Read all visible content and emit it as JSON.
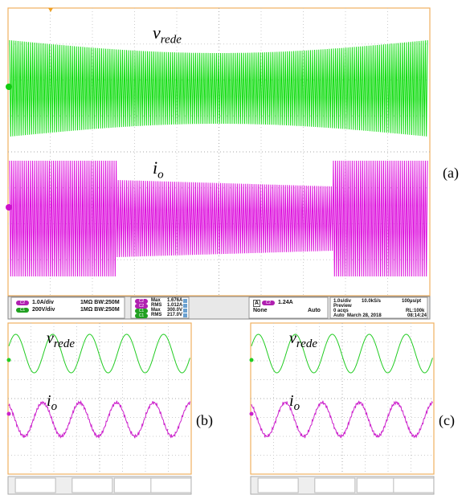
{
  "panels": [
    {
      "caption": "(a)",
      "waveforms": [
        {
          "symbol": "v",
          "subscript": "rede"
        },
        {
          "symbol": "i",
          "subscript": "o"
        }
      ],
      "readout": {
        "channels": [
          {
            "badge": "C2",
            "scale": "1.0A/div",
            "input": "1MΩ BW:250M"
          },
          {
            "badge": "C1",
            "scale": "200V/div",
            "input": "1MΩ BW:250M"
          }
        ],
        "measurements": [
          {
            "badge": "C2",
            "name": "Max",
            "value": "1.676A"
          },
          {
            "badge": "C2",
            "name": "RMS",
            "value": "1.012A"
          },
          {
            "badge": "C1",
            "name": "Max",
            "value": "300.0V"
          },
          {
            "badge": "C1",
            "name": "RMS",
            "value": "217.0V"
          }
        ],
        "trigger": {
          "source": "A",
          "badge": "C2",
          "level": "1.24A",
          "coupling": "None",
          "mode": "Auto"
        },
        "acquisition": {
          "timebase": "1.0s/div",
          "rate": "10.0kS/s",
          "resolution": "100µs/pt",
          "state": "Preview",
          "count": "0 acqs",
          "length": "RL:100k",
          "mode": "Auto",
          "date": "March 28, 2018",
          "time": "08:14:24"
        }
      }
    },
    {
      "caption": "(b)",
      "waveforms": [
        {
          "symbol": "v",
          "subscript": "rede"
        },
        {
          "symbol": "i",
          "subscript": "o"
        }
      ]
    },
    {
      "caption": "(c)",
      "waveforms": [
        {
          "symbol": "v",
          "subscript": "rede"
        },
        {
          "symbol": "i",
          "subscript": "o"
        }
      ]
    }
  ]
}
